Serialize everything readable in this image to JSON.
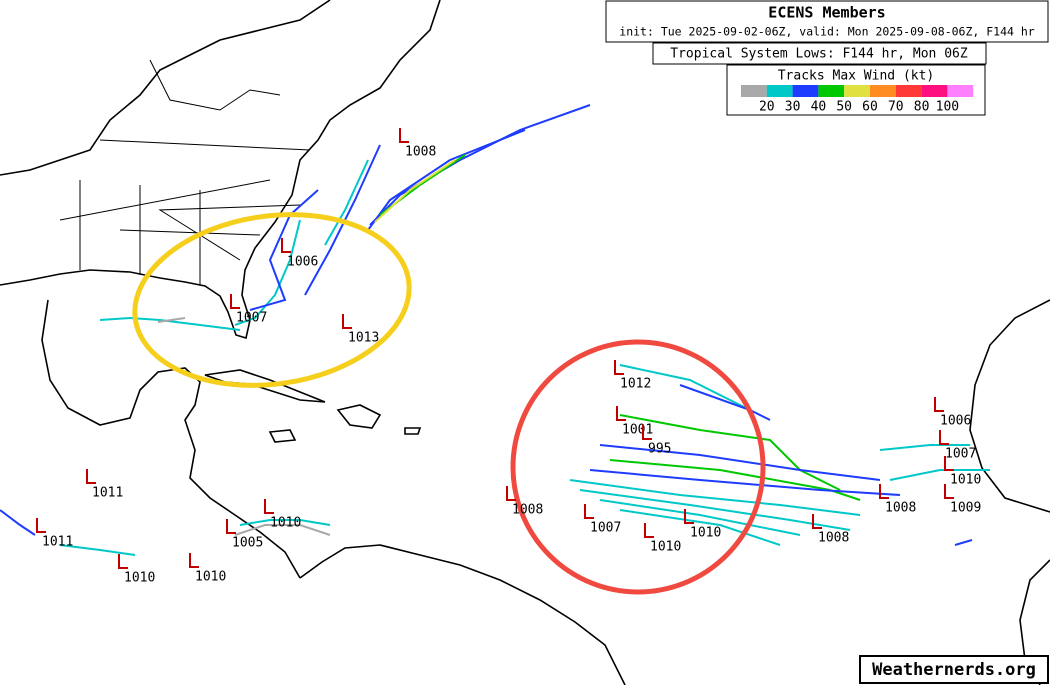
{
  "header": {
    "title": "ECENS Members",
    "init": "init: Tue 2025-09-02-06Z, valid: Mon 2025-09-08-06Z, F144 hr",
    "subtitle": "Tropical System Lows: F144 hr, Mon 06Z"
  },
  "legend": {
    "title": "Tracks Max Wind (kt)",
    "colors": [
      "#a8a8a8",
      "#00c8c8",
      "#1e3cff",
      "#00c800",
      "#e0e040",
      "#ff8c20",
      "#ff3838",
      "#ff1080",
      "#ff80ff"
    ],
    "labels": [
      "20",
      "30",
      "40",
      "50",
      "60",
      "70",
      "80",
      "100"
    ]
  },
  "lows": [
    "1008",
    "1006",
    "1007",
    "1013",
    "1012",
    "1001",
    "995",
    "1008",
    "1007",
    "1010",
    "1010",
    "1008",
    "1008",
    "1006",
    "1007",
    "1010",
    "1009",
    "1011",
    "1011",
    "1010",
    "1010",
    "1010",
    "1005"
  ],
  "watermark": "Weathernerds.org"
}
